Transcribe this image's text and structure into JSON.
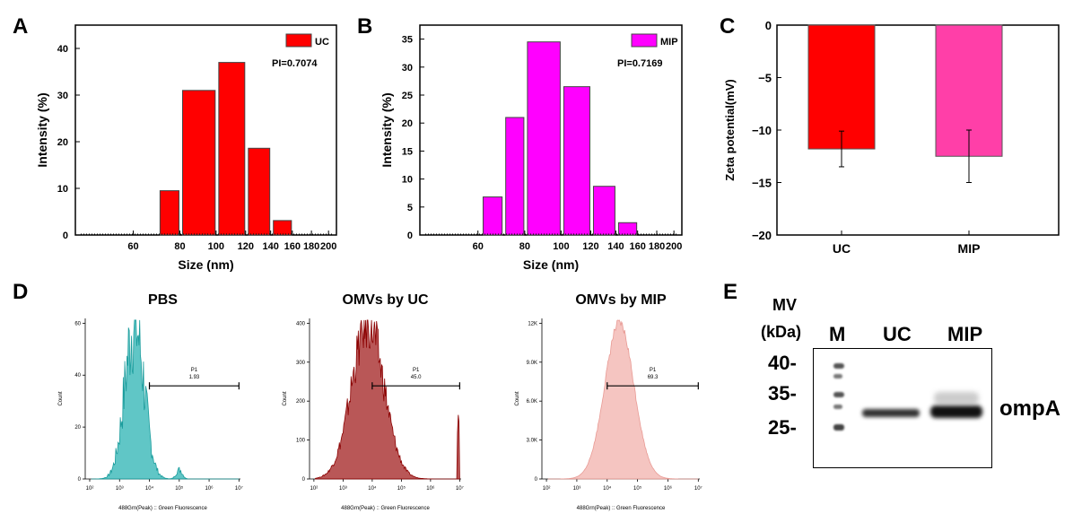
{
  "panel_labels": {
    "a": "A",
    "b": "B",
    "c": "C",
    "d": "D",
    "e": "E"
  },
  "colors": {
    "uc_red": "#ff0000",
    "mip_magenta": "#ff00ff",
    "zeta_uc": "#ff0000",
    "zeta_mip": "#ff3fa8",
    "pbs_teal": "#2bb3b3",
    "uc_maroon": "#a11f1f",
    "mip_pink": "#f2b1ac"
  },
  "chart_data": [
    {
      "id": "A",
      "type": "bar",
      "categories": [
        "80",
        "100",
        "120",
        "140",
        "160"
      ],
      "bars": [
        {
          "x": 80,
          "y": 9.5
        },
        {
          "x": 100,
          "y": 31
        },
        {
          "x": 120,
          "y": 37
        },
        {
          "x": 140,
          "y": 18.6
        },
        {
          "x": 160,
          "y": 3.1
        }
      ],
      "xlabel": "Size (nm)",
      "ylabel": "Intensity (%)",
      "yticks": [
        "0",
        "10",
        "20",
        "30",
        "40"
      ],
      "ylim": [
        0,
        45
      ],
      "xticks": [
        "60",
        "80",
        "100",
        "120",
        "140",
        "160",
        "180",
        "200"
      ],
      "legend": "UC",
      "annotation": "PI=0.7074"
    },
    {
      "id": "B",
      "type": "bar",
      "bars": [
        {
          "x": 70,
          "y": 6.8
        },
        {
          "x": 80,
          "y": 21
        },
        {
          "x": 100,
          "y": 34.5
        },
        {
          "x": 120,
          "y": 26.5
        },
        {
          "x": 140,
          "y": 8.7
        },
        {
          "x": 160,
          "y": 2.2
        }
      ],
      "xlabel": "Size (nm)",
      "ylabel": "Intensity (%)",
      "yticks": [
        "0",
        "5",
        "10",
        "15",
        "20",
        "25",
        "30",
        "35"
      ],
      "ylim": [
        0,
        37.5
      ],
      "xticks": [
        "60",
        "80",
        "100",
        "120",
        "140",
        "160",
        "180",
        "200"
      ],
      "legend": "MIP",
      "annotation": "PI=0.7169"
    },
    {
      "id": "C",
      "type": "bar",
      "categories": [
        "UC",
        "MIP"
      ],
      "values": [
        -11.8,
        -12.5
      ],
      "errors": [
        1.7,
        2.5
      ],
      "ylabel": "Zeta potential(mV)",
      "yticks": [
        "0",
        "−5",
        "−10",
        "−15",
        "−20"
      ],
      "ylim": [
        -20,
        0
      ]
    },
    {
      "id": "D",
      "type": "area",
      "histograms": [
        {
          "title": "PBS",
          "gate": "P1",
          "gate_value": "1.93",
          "yticks": [
            "0",
            "20",
            "40",
            "60"
          ],
          "ymax": 62,
          "xlabel": "488Grn(Peak) :: Green Fluorescence",
          "ylabel": "Count",
          "xticks": [
            "10²",
            "10³",
            "10⁴",
            "10⁵",
            "10⁶",
            "10⁷"
          ],
          "gate_range": [
            4.0,
            7.0
          ]
        },
        {
          "title": "OMVs by UC",
          "gate": "P1",
          "gate_value": "45.0",
          "yticks": [
            "0",
            "100",
            "200",
            "300",
            "400"
          ],
          "ymax": 470,
          "xlabel": "488Grn(Peak) :: Green Fluorescence",
          "ylabel": "Count",
          "xticks": [
            "10²",
            "10³",
            "10⁴",
            "10⁵",
            "10⁶",
            "10⁷"
          ],
          "gate_range": [
            4.0,
            7.0
          ]
        },
        {
          "title": "OMVs by MIP",
          "gate": "P1",
          "gate_value": "69.3",
          "yticks": [
            "0",
            "3.0K",
            "6.0K",
            "9.0K",
            "12K"
          ],
          "ymax": 12500,
          "xlabel": "488Grn(Peak) :: Green Fluorescence",
          "ylabel": "Count",
          "xticks": [
            "10²",
            "10³",
            "10⁴",
            "10⁵",
            "10⁶",
            "10⁷"
          ],
          "gate_range": [
            4.0,
            7.0
          ]
        }
      ]
    }
  ],
  "western_blot": {
    "mw_header_line1": "MV",
    "mw_header_line2": "(kDa)",
    "lanes": [
      "M",
      "UC",
      "MIP"
    ],
    "markers": [
      "40-",
      "35-",
      "25-"
    ],
    "band_label": "ompA"
  }
}
